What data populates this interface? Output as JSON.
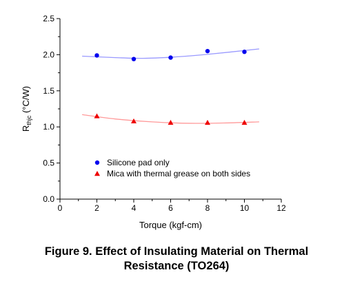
{
  "chart_data": {
    "type": "scatter",
    "x_axis": {
      "label": "Torque (kgf-cm)",
      "range": [
        0,
        12
      ],
      "ticks": [
        0,
        2,
        4,
        6,
        8,
        10,
        12
      ]
    },
    "y_axis": {
      "label_main": "R",
      "label_sub": "thjc",
      "label_unit": " (°C/W)",
      "range": [
        0,
        2.5
      ],
      "ticks": [
        "0.0",
        "0.5",
        "1.0",
        "1.5",
        "2.0",
        "2.5"
      ]
    },
    "series": [
      {
        "name": "Silicone pad only",
        "marker": "circle",
        "color": "#0000ee",
        "trend_color": "#9999ff",
        "points": [
          {
            "x": 2,
            "y": 1.99
          },
          {
            "x": 4,
            "y": 1.94
          },
          {
            "x": 6,
            "y": 1.96
          },
          {
            "x": 8,
            "y": 2.05
          },
          {
            "x": 10,
            "y": 2.04
          }
        ],
        "trend": [
          {
            "x": 1.2,
            "y": 1.98
          },
          {
            "x": 3,
            "y": 1.96
          },
          {
            "x": 4.5,
            "y": 1.95
          },
          {
            "x": 6,
            "y": 1.965
          },
          {
            "x": 8,
            "y": 2.005
          },
          {
            "x": 10.8,
            "y": 2.08
          }
        ]
      },
      {
        "name": "Mica with thermal grease on both sides",
        "marker": "triangle",
        "color": "#ee0000",
        "trend_color": "#ff9999",
        "points": [
          {
            "x": 2,
            "y": 1.15
          },
          {
            "x": 4,
            "y": 1.08
          },
          {
            "x": 6,
            "y": 1.06
          },
          {
            "x": 8,
            "y": 1.06
          },
          {
            "x": 10,
            "y": 1.06
          }
        ],
        "trend": [
          {
            "x": 1.2,
            "y": 1.17
          },
          {
            "x": 3,
            "y": 1.11
          },
          {
            "x": 5,
            "y": 1.07
          },
          {
            "x": 7,
            "y": 1.05
          },
          {
            "x": 9,
            "y": 1.055
          },
          {
            "x": 10.8,
            "y": 1.07
          }
        ]
      }
    ],
    "legend_position": "lower-left",
    "grid": false
  },
  "caption": {
    "line1": "Figure 9. Effect of Insulating Material on Thermal",
    "line2": "Resistance (TO264)"
  }
}
